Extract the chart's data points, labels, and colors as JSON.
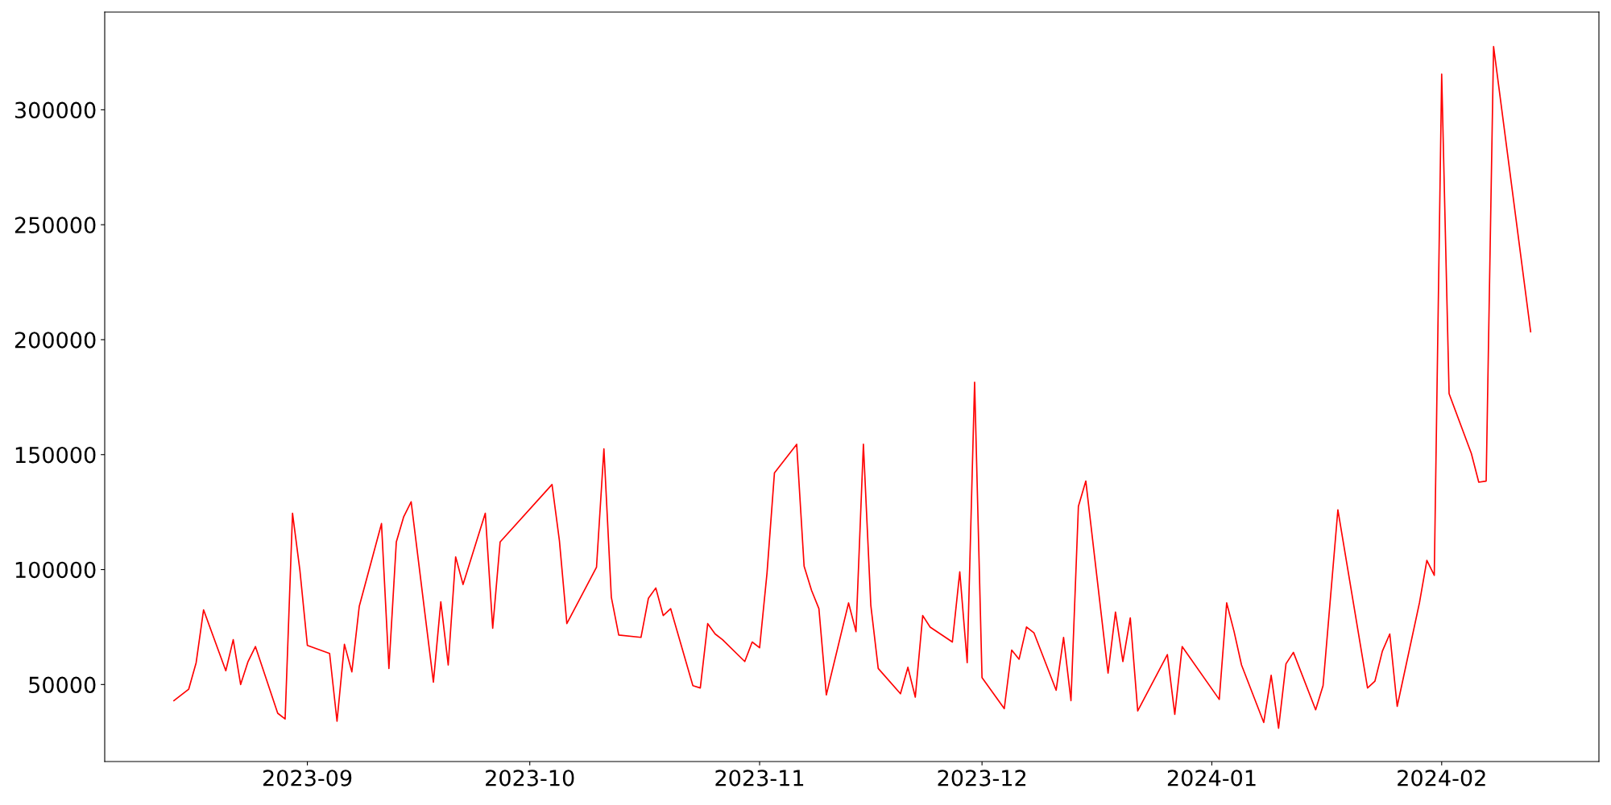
{
  "chart_data": {
    "type": "line",
    "x": [
      "2023-08-14",
      "2023-08-16",
      "2023-08-17",
      "2023-08-18",
      "2023-08-21",
      "2023-08-22",
      "2023-08-23",
      "2023-08-24",
      "2023-08-25",
      "2023-08-28",
      "2023-08-29",
      "2023-08-30",
      "2023-08-31",
      "2023-09-01",
      "2023-09-04",
      "2023-09-05",
      "2023-09-06",
      "2023-09-07",
      "2023-09-08",
      "2023-09-11",
      "2023-09-12",
      "2023-09-13",
      "2023-09-14",
      "2023-09-15",
      "2023-09-18",
      "2023-09-19",
      "2023-09-20",
      "2023-09-21",
      "2023-09-22",
      "2023-09-25",
      "2023-09-26",
      "2023-09-27",
      "2023-10-04",
      "2023-10-05",
      "2023-10-06",
      "2023-10-10",
      "2023-10-11",
      "2023-10-12",
      "2023-10-13",
      "2023-10-16",
      "2023-10-17",
      "2023-10-18",
      "2023-10-19",
      "2023-10-20",
      "2023-10-23",
      "2023-10-24",
      "2023-10-25",
      "2023-10-26",
      "2023-10-27",
      "2023-10-30",
      "2023-10-31",
      "2023-11-01",
      "2023-11-02",
      "2023-11-03",
      "2023-11-06",
      "2023-11-07",
      "2023-11-08",
      "2023-11-09",
      "2023-11-10",
      "2023-11-13",
      "2023-11-14",
      "2023-11-15",
      "2023-11-16",
      "2023-11-17",
      "2023-11-20",
      "2023-11-21",
      "2023-11-22",
      "2023-11-23",
      "2023-11-24",
      "2023-11-27",
      "2023-11-28",
      "2023-11-29",
      "2023-11-30",
      "2023-12-01",
      "2023-12-04",
      "2023-12-05",
      "2023-12-06",
      "2023-12-07",
      "2023-12-08",
      "2023-12-11",
      "2023-12-12",
      "2023-12-13",
      "2023-12-14",
      "2023-12-15",
      "2023-12-18",
      "2023-12-19",
      "2023-12-20",
      "2023-12-21",
      "2023-12-22",
      "2023-12-26",
      "2023-12-27",
      "2023-12-28",
      "2024-01-02",
      "2024-01-03",
      "2024-01-04",
      "2024-01-05",
      "2024-01-08",
      "2024-01-09",
      "2024-01-10",
      "2024-01-11",
      "2024-01-12",
      "2024-01-15",
      "2024-01-16",
      "2024-01-18",
      "2024-01-22",
      "2024-01-23",
      "2024-01-24",
      "2024-01-25",
      "2024-01-26",
      "2024-01-29",
      "2024-01-30",
      "2024-01-31",
      "2024-02-01",
      "2024-02-02",
      "2024-02-05",
      "2024-02-06",
      "2024-02-07",
      "2024-02-08",
      "2024-02-13"
    ],
    "series": [
      {
        "color": "#ff0000",
        "values": [
          43000,
          48000,
          59500,
          82500,
          56000,
          69500,
          50000,
          60000,
          66500,
          37500,
          35000,
          124500,
          99500,
          67000,
          63500,
          34000,
          67500,
          55500,
          84000,
          120000,
          57000,
          112000,
          123000,
          129500,
          51000,
          86000,
          58500,
          105500,
          93500,
          124500,
          74500,
          112000,
          137000,
          112500,
          76500,
          101000,
          152500,
          88000,
          71500,
          70500,
          87500,
          92000,
          80000,
          83000,
          49500,
          48500,
          76500,
          72000,
          69500,
          60000,
          68500,
          66000,
          98500,
          142000,
          154500,
          101500,
          91000,
          83000,
          45500,
          85500,
          73000,
          154500,
          84500,
          57000,
          46000,
          57500,
          44500,
          80000,
          75000,
          68500,
          99000,
          59500,
          181500,
          53000,
          39500,
          65000,
          61000,
          75000,
          72500,
          47500,
          70500,
          43000,
          127500,
          138500,
          55000,
          81500,
          60000,
          79000,
          38500,
          63000,
          37000,
          66500,
          43500,
          85500,
          73000,
          58500,
          33500,
          54000,
          31000,
          59000,
          64000,
          39000,
          49500,
          126000,
          48500,
          51500,
          64500,
          72000,
          40500,
          85500,
          104000,
          97500,
          315500,
          176500,
          150500,
          138000,
          138500,
          327500,
          203500
        ]
      }
    ],
    "xlim": [
      "2023-08-04T16:00",
      "2024-02-22T05:00"
    ],
    "xticks": [
      {
        "value": "2023-09-01",
        "label": "2023-09"
      },
      {
        "value": "2023-10-01",
        "label": "2023-10"
      },
      {
        "value": "2023-11-01",
        "label": "2023-11"
      },
      {
        "value": "2023-12-01",
        "label": "2023-12"
      },
      {
        "value": "2024-01-01",
        "label": "2024-01"
      },
      {
        "value": "2024-02-01",
        "label": "2024-02"
      }
    ],
    "ylim": [
      16500,
      342500
    ],
    "yticks": [
      50000,
      100000,
      150000,
      200000,
      250000,
      300000
    ],
    "grid": false,
    "marker": "none",
    "line_style": "solid"
  }
}
